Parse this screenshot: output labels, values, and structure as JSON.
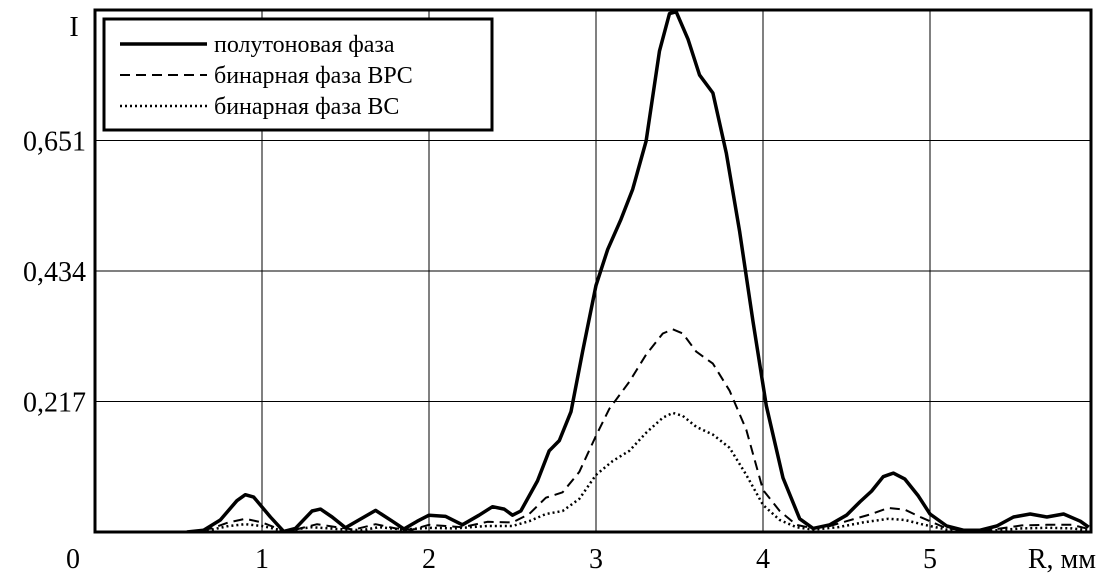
{
  "chart_data": {
    "type": "line",
    "title": "",
    "xlabel": "R, мм",
    "ylabel": "I",
    "xlim": [
      0,
      5.5
    ],
    "ylim": [
      0,
      0.868
    ],
    "x_ticks": [
      {
        "value": 0,
        "label": "0"
      },
      {
        "value": 1,
        "label": "1"
      },
      {
        "value": 2,
        "label": "2"
      },
      {
        "value": 3,
        "label": "3"
      },
      {
        "value": 4,
        "label": "4"
      },
      {
        "value": 5,
        "label": "5"
      }
    ],
    "y_ticks": [
      {
        "value": 0.217,
        "label": "0,217"
      },
      {
        "value": 0.434,
        "label": "0,434"
      },
      {
        "value": 0.651,
        "label": "0,651"
      },
      {
        "value": 0.868,
        "label": "I"
      }
    ],
    "grid": true,
    "legend_position": "top-left",
    "series": [
      {
        "name": "полутоновая фаза",
        "style": "solid",
        "points": [
          [
            0.55,
            0
          ],
          [
            0.65,
            0.003
          ],
          [
            0.75,
            0.02
          ],
          [
            0.85,
            0.052
          ],
          [
            0.9,
            0.062
          ],
          [
            0.95,
            0.058
          ],
          [
            1.05,
            0.025
          ],
          [
            1.13,
            0.001
          ],
          [
            1.2,
            0.006
          ],
          [
            1.3,
            0.035
          ],
          [
            1.35,
            0.038
          ],
          [
            1.42,
            0.025
          ],
          [
            1.5,
            0.007
          ],
          [
            1.58,
            0.02
          ],
          [
            1.68,
            0.036
          ],
          [
            1.78,
            0.018
          ],
          [
            1.85,
            0.005
          ],
          [
            1.93,
            0.018
          ],
          [
            2.0,
            0.028
          ],
          [
            2.1,
            0.026
          ],
          [
            2.2,
            0.012
          ],
          [
            2.3,
            0.028
          ],
          [
            2.38,
            0.042
          ],
          [
            2.45,
            0.038
          ],
          [
            2.5,
            0.028
          ],
          [
            2.55,
            0.035
          ],
          [
            2.65,
            0.085
          ],
          [
            2.72,
            0.135
          ],
          [
            2.78,
            0.152
          ],
          [
            2.85,
            0.2
          ],
          [
            2.92,
            0.3
          ],
          [
            3.0,
            0.41
          ],
          [
            3.07,
            0.47
          ],
          [
            3.15,
            0.52
          ],
          [
            3.22,
            0.57
          ],
          [
            3.3,
            0.65
          ],
          [
            3.38,
            0.8
          ],
          [
            3.44,
            0.862
          ],
          [
            3.48,
            0.865
          ],
          [
            3.55,
            0.82
          ],
          [
            3.62,
            0.76
          ],
          [
            3.7,
            0.73
          ],
          [
            3.78,
            0.63
          ],
          [
            3.86,
            0.5
          ],
          [
            3.94,
            0.35
          ],
          [
            4.02,
            0.21
          ],
          [
            4.12,
            0.09
          ],
          [
            4.22,
            0.022
          ],
          [
            4.3,
            0.006
          ],
          [
            4.4,
            0.012
          ],
          [
            4.5,
            0.028
          ],
          [
            4.58,
            0.05
          ],
          [
            4.65,
            0.068
          ],
          [
            4.72,
            0.092
          ],
          [
            4.78,
            0.098
          ],
          [
            4.85,
            0.088
          ],
          [
            4.93,
            0.06
          ],
          [
            5.0,
            0.03
          ],
          [
            5.1,
            0.01
          ],
          [
            5.2,
            0.003
          ],
          [
            5.3,
            0.003
          ],
          [
            5.4,
            0.01
          ],
          [
            5.5,
            0.025
          ],
          [
            5.6,
            0.03
          ],
          [
            5.7,
            0.025
          ],
          [
            5.8,
            0.03
          ],
          [
            5.9,
            0.018
          ],
          [
            5.95,
            0.008
          ]
        ]
      },
      {
        "name": "бинарная фаза BPC",
        "style": "dashed",
        "points": [
          [
            0.55,
            0
          ],
          [
            0.7,
            0.006
          ],
          [
            0.8,
            0.016
          ],
          [
            0.9,
            0.022
          ],
          [
            1.0,
            0.016
          ],
          [
            1.13,
            0.002
          ],
          [
            1.2,
            0.004
          ],
          [
            1.33,
            0.013
          ],
          [
            1.45,
            0.008
          ],
          [
            1.55,
            0.004
          ],
          [
            1.68,
            0.013
          ],
          [
            1.8,
            0.006
          ],
          [
            1.9,
            0.004
          ],
          [
            2.0,
            0.012
          ],
          [
            2.1,
            0.01
          ],
          [
            2.2,
            0.008
          ],
          [
            2.35,
            0.017
          ],
          [
            2.5,
            0.016
          ],
          [
            2.6,
            0.03
          ],
          [
            2.7,
            0.057
          ],
          [
            2.8,
            0.066
          ],
          [
            2.9,
            0.1
          ],
          [
            3.0,
            0.16
          ],
          [
            3.08,
            0.205
          ],
          [
            3.2,
            0.25
          ],
          [
            3.3,
            0.295
          ],
          [
            3.4,
            0.33
          ],
          [
            3.46,
            0.337
          ],
          [
            3.52,
            0.33
          ],
          [
            3.6,
            0.3
          ],
          [
            3.7,
            0.28
          ],
          [
            3.8,
            0.235
          ],
          [
            3.9,
            0.17
          ],
          [
            4.0,
            0.07
          ],
          [
            4.1,
            0.035
          ],
          [
            4.2,
            0.012
          ],
          [
            4.3,
            0.006
          ],
          [
            4.4,
            0.01
          ],
          [
            4.5,
            0.018
          ],
          [
            4.65,
            0.03
          ],
          [
            4.75,
            0.04
          ],
          [
            4.85,
            0.037
          ],
          [
            4.95,
            0.024
          ],
          [
            5.1,
            0.006
          ],
          [
            5.25,
            0.002
          ],
          [
            5.4,
            0.005
          ],
          [
            5.55,
            0.011
          ],
          [
            5.7,
            0.012
          ],
          [
            5.85,
            0.012
          ],
          [
            5.95,
            0.005
          ]
        ]
      },
      {
        "name": "бинарная фаза BC",
        "style": "dotted",
        "points": [
          [
            0.55,
            0
          ],
          [
            0.7,
            0.004
          ],
          [
            0.8,
            0.01
          ],
          [
            0.9,
            0.013
          ],
          [
            1.0,
            0.01
          ],
          [
            1.13,
            0.002
          ],
          [
            1.3,
            0.008
          ],
          [
            1.45,
            0.005
          ],
          [
            1.6,
            0.003
          ],
          [
            1.7,
            0.008
          ],
          [
            1.85,
            0.004
          ],
          [
            2.0,
            0.007
          ],
          [
            2.15,
            0.006
          ],
          [
            2.35,
            0.01
          ],
          [
            2.5,
            0.01
          ],
          [
            2.6,
            0.018
          ],
          [
            2.7,
            0.03
          ],
          [
            2.8,
            0.035
          ],
          [
            2.9,
            0.055
          ],
          [
            3.0,
            0.095
          ],
          [
            3.1,
            0.118
          ],
          [
            3.2,
            0.135
          ],
          [
            3.3,
            0.165
          ],
          [
            3.4,
            0.19
          ],
          [
            3.46,
            0.198
          ],
          [
            3.52,
            0.193
          ],
          [
            3.6,
            0.175
          ],
          [
            3.7,
            0.162
          ],
          [
            3.8,
            0.14
          ],
          [
            3.9,
            0.095
          ],
          [
            4.0,
            0.045
          ],
          [
            4.1,
            0.02
          ],
          [
            4.2,
            0.008
          ],
          [
            4.3,
            0.004
          ],
          [
            4.45,
            0.008
          ],
          [
            4.6,
            0.016
          ],
          [
            4.75,
            0.022
          ],
          [
            4.85,
            0.02
          ],
          [
            4.95,
            0.013
          ],
          [
            5.1,
            0.004
          ],
          [
            5.25,
            0.001
          ],
          [
            5.4,
            0.003
          ],
          [
            5.55,
            0.006
          ],
          [
            5.7,
            0.007
          ],
          [
            5.85,
            0.006
          ],
          [
            5.95,
            0.003
          ]
        ]
      }
    ]
  }
}
